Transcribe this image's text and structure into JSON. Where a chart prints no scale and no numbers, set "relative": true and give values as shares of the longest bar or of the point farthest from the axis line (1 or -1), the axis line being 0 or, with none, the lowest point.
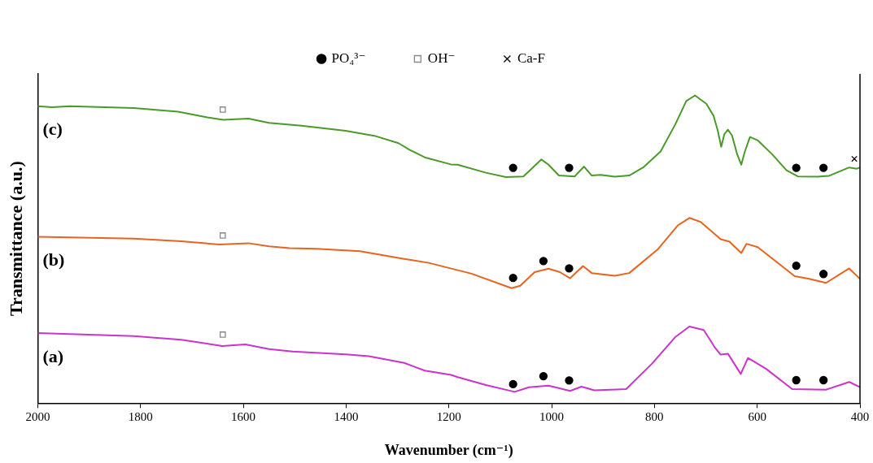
{
  "chart_data": {
    "type": "line",
    "xlabel": "Wavenumber (cm⁻¹)",
    "ylabel": "Transmittance (a.u.)",
    "relative": true,
    "xlim": [
      2000,
      400
    ],
    "xticks": [
      2000,
      1800,
      1600,
      1400,
      1200,
      1000,
      800,
      600,
      400
    ],
    "legend": "top",
    "line_style": "solid",
    "series": [
      {
        "name": "(c)",
        "color": "#4a9a2a",
        "marker": "none",
        "x": [
          2000,
          1972,
          1938,
          1813,
          1727,
          1670,
          1639,
          1590,
          1550,
          1487,
          1401,
          1345,
          1298,
          1276,
          1247,
          1196,
          1183,
          1128,
          1089,
          1055,
          1039,
          1020,
          1006,
          986,
          955,
          937,
          922,
          905,
          877,
          849,
          822,
          788,
          760,
          738,
          721,
          699,
          685,
          677,
          670,
          664,
          657,
          649,
          639,
          631,
          624,
          614,
          599,
          571,
          543,
          521,
          482,
          460,
          421,
          406,
          400
        ],
        "values": [
          0.965,
          0.962,
          0.965,
          0.959,
          0.947,
          0.929,
          0.921,
          0.925,
          0.911,
          0.902,
          0.885,
          0.869,
          0.845,
          0.823,
          0.799,
          0.776,
          0.775,
          0.749,
          0.735,
          0.737,
          0.762,
          0.792,
          0.775,
          0.74,
          0.737,
          0.769,
          0.74,
          0.742,
          0.736,
          0.74,
          0.766,
          0.818,
          0.904,
          0.982,
          1.0,
          0.973,
          0.934,
          0.887,
          0.833,
          0.874,
          0.889,
          0.87,
          0.809,
          0.775,
          0.818,
          0.865,
          0.854,
          0.809,
          0.757,
          0.737,
          0.736,
          0.739,
          0.766,
          0.762,
          0.766
        ]
      },
      {
        "name": "(b)",
        "color": "#e8641e",
        "marker": "none",
        "x": [
          2000,
          1813,
          1721,
          1647,
          1590,
          1550,
          1510,
          1458,
          1373,
          1287,
          1239,
          1156,
          1078,
          1061,
          1033,
          1006,
          984,
          964,
          939,
          922,
          877,
          849,
          794,
          755,
          732,
          710,
          671,
          654,
          631,
          621,
          599,
          527,
          499,
          466,
          421,
          400
        ],
        "values": [
          0.541,
          0.535,
          0.526,
          0.516,
          0.52,
          0.51,
          0.504,
          0.502,
          0.494,
          0.469,
          0.456,
          0.421,
          0.374,
          0.382,
          0.426,
          0.437,
          0.426,
          0.406,
          0.446,
          0.423,
          0.414,
          0.423,
          0.499,
          0.577,
          0.602,
          0.589,
          0.533,
          0.525,
          0.488,
          0.518,
          0.507,
          0.413,
          0.404,
          0.391,
          0.438,
          0.404
        ]
      },
      {
        "name": "(a)",
        "color": "#cc33cc",
        "marker": "none",
        "x": [
          2000,
          1813,
          1721,
          1641,
          1596,
          1550,
          1504,
          1401,
          1356,
          1287,
          1247,
          1196,
          1183,
          1128,
          1072,
          1044,
          1006,
          964,
          942,
          917,
          855,
          805,
          760,
          732,
          704,
          682,
          671,
          657,
          632,
          618,
          582,
          532,
          466,
          421,
          400
        ],
        "values": [
          0.228,
          0.218,
          0.206,
          0.186,
          0.191,
          0.176,
          0.168,
          0.159,
          0.153,
          0.131,
          0.106,
          0.092,
          0.085,
          0.059,
          0.037,
          0.052,
          0.057,
          0.04,
          0.054,
          0.042,
          0.046,
          0.128,
          0.214,
          0.249,
          0.238,
          0.18,
          0.158,
          0.161,
          0.095,
          0.147,
          0.111,
          0.046,
          0.044,
          0.069,
          0.052
        ]
      },
      {
        "name": "PO₄³⁻",
        "type": "scatter",
        "color": "#000000",
        "marker": "circle",
        "x": [
          1075,
          966,
          524,
          471,
          1075,
          1016,
          966,
          524,
          471,
          1075,
          1016,
          966,
          524,
          471
        ],
        "values": [
          0.765,
          0.765,
          0.765,
          0.765,
          0.407,
          0.462,
          0.438,
          0.447,
          0.42,
          0.062,
          0.088,
          0.074,
          0.075,
          0.075
        ]
      },
      {
        "name": "OH⁻",
        "type": "scatter",
        "color": "#888888",
        "marker": "square",
        "x": [
          1640,
          1640,
          1640
        ],
        "values": [
          0.954,
          0.545,
          0.223
        ]
      },
      {
        "name": "Ca-F",
        "type": "scatter",
        "color": "#000000",
        "marker": "cross",
        "x": [
          411
        ],
        "values": [
          0.794
        ]
      }
    ]
  }
}
